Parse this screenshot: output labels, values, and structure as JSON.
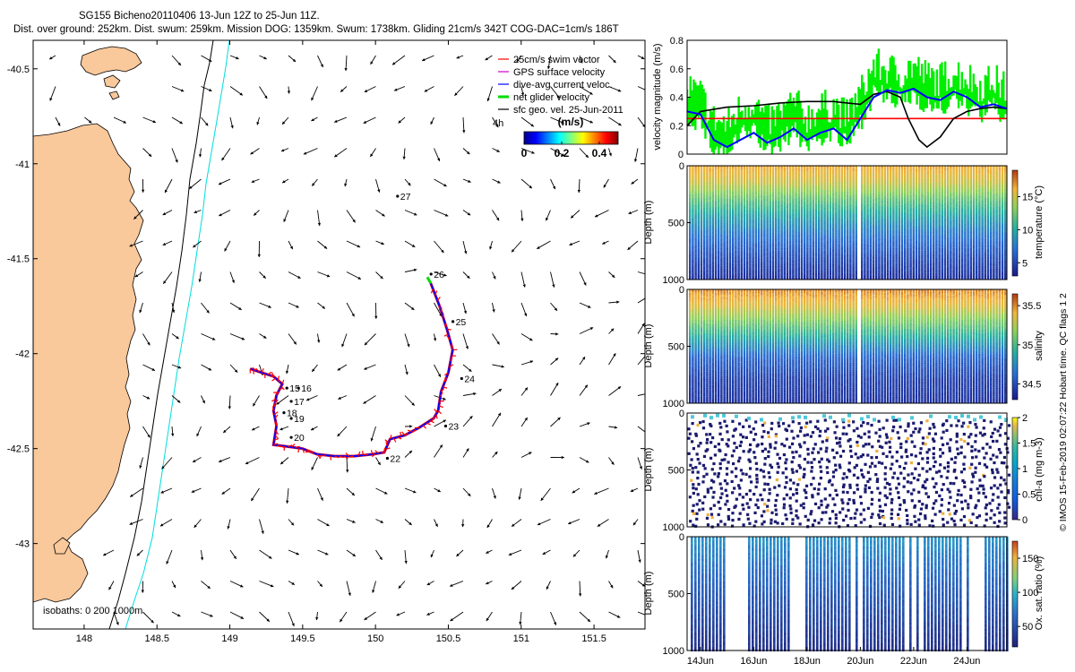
{
  "title": {
    "line1": "SG155 Bicheno20110406 13-Jun 12Z to 25-Jun 11Z.",
    "line2": "Dist. over ground: 252km. Dist. swum: 259km. Mission DOG: 1359km. Swum: 1738km. Gliding 21cm/s 342T COG-DAC=1cm/s 186T"
  },
  "credit": "© IMOS 15-Feb-2019 02:07:22 Hobart time. QC flags 1 2",
  "colors": {
    "land": "#f9c89b",
    "track_red": "#ff0000",
    "track_blue": "#0000ff",
    "track_green": "#00e000",
    "cyan_isobath": "#00dddd",
    "axis": "#000000"
  },
  "chart_data": [
    {
      "type": "map",
      "id": "track_map",
      "lon_ticks": [
        "148",
        "148.5",
        "149",
        "149.5",
        "150",
        "150.5",
        "151",
        "151.5"
      ],
      "lat_ticks": [
        "-40.5",
        "-41",
        "-41.5",
        "-42",
        "-42.5",
        "-43"
      ],
      "xlim": [
        147.65,
        151.85
      ],
      "ylim": [
        -43.45,
        -40.35
      ],
      "legend": {
        "placement": "top-right",
        "items": [
          {
            "label": "25cm/s swim vector",
            "color": "#ff0000"
          },
          {
            "label": "GPS surface velocity",
            "color": "#cc00cc"
          },
          {
            "label": "dive-avg current veloc.",
            "color": "#0000ff"
          },
          {
            "label": "net glider velocity",
            "color": "#00dd00"
          },
          {
            "label": "sfc geo. vel. 25-Jun-2011",
            "color": "#000000"
          }
        ]
      },
      "legend_note": "4h",
      "colorbar": {
        "title": "(m/s)",
        "ticks": [
          "0",
          "0.2",
          "0.4"
        ],
        "range": [
          0,
          0.5
        ]
      },
      "isobaths_label": "isobaths: 0   200  1000m",
      "day_labels": [
        {
          "text": "27",
          "lon": 150.17,
          "lat": -41.19
        },
        {
          "text": "26",
          "lon": 150.4,
          "lat": -41.6
        },
        {
          "text": "25",
          "lon": 150.55,
          "lat": -41.85
        },
        {
          "text": "24",
          "lon": 150.61,
          "lat": -42.15
        },
        {
          "text": "23",
          "lon": 150.5,
          "lat": -42.4
        },
        {
          "text": "22",
          "lon": 150.1,
          "lat": -42.57
        },
        {
          "text": "20",
          "lon": 149.44,
          "lat": -42.46
        },
        {
          "text": "19",
          "lon": 149.44,
          "lat": -42.36
        },
        {
          "text": "18",
          "lon": 149.39,
          "lat": -42.33
        },
        {
          "text": "17",
          "lon": 149.44,
          "lat": -42.27
        },
        {
          "text": "16",
          "lon": 149.49,
          "lat": -42.2
        },
        {
          "text": "15",
          "lon": 149.41,
          "lat": -42.2
        }
      ],
      "track": [
        [
          149.14,
          -42.08
        ],
        [
          149.22,
          -42.1
        ],
        [
          149.3,
          -42.12
        ],
        [
          149.36,
          -42.16
        ],
        [
          149.32,
          -42.22
        ],
        [
          149.3,
          -42.3
        ],
        [
          149.32,
          -42.38
        ],
        [
          149.3,
          -42.48
        ],
        [
          149.4,
          -42.49
        ],
        [
          149.5,
          -42.5
        ],
        [
          149.6,
          -42.53
        ],
        [
          149.72,
          -42.54
        ],
        [
          149.85,
          -42.54
        ],
        [
          149.98,
          -42.53
        ],
        [
          150.06,
          -42.52
        ],
        [
          150.1,
          -42.45
        ],
        [
          150.2,
          -42.43
        ],
        [
          150.3,
          -42.39
        ],
        [
          150.4,
          -42.34
        ],
        [
          150.43,
          -42.3
        ],
        [
          150.45,
          -42.2
        ],
        [
          150.5,
          -42.1
        ],
        [
          150.53,
          -41.98
        ],
        [
          150.49,
          -41.87
        ],
        [
          150.44,
          -41.75
        ],
        [
          150.38,
          -41.63
        ]
      ]
    },
    {
      "type": "line",
      "id": "velocity",
      "ylabel": "velocity magnitude (m/s)",
      "yticks": [
        "0",
        "0.2",
        "0.4",
        "0.6",
        "0.8"
      ],
      "ylim": [
        0,
        0.8
      ],
      "xlim": [
        13.5,
        25.5
      ],
      "series": [
        {
          "color": "#ff0000",
          "x": [
            13.5,
            25.5
          ],
          "y": [
            0.25,
            0.25
          ]
        },
        {
          "color": "#000000",
          "x": [
            13.5,
            14,
            15,
            16,
            17,
            18,
            19,
            19.5,
            20,
            20.5,
            21,
            21.5,
            21.8,
            22.2,
            22.5,
            23,
            23.5,
            24,
            24.5,
            25,
            25.5
          ],
          "y": [
            0.2,
            0.3,
            0.33,
            0.34,
            0.36,
            0.37,
            0.37,
            0.36,
            0.35,
            0.42,
            0.44,
            0.4,
            0.25,
            0.1,
            0.05,
            0.12,
            0.25,
            0.3,
            0.32,
            0.33,
            0.32
          ]
        },
        {
          "color": "#0000ff",
          "x": [
            13.5,
            14,
            14.5,
            15,
            15.5,
            16,
            16.5,
            17,
            17.5,
            18,
            18.5,
            19,
            19.5,
            20,
            20.5,
            21,
            21.5,
            22,
            22.5,
            23,
            23.5,
            24,
            24.5,
            25,
            25.5
          ],
          "y": [
            0.3,
            0.28,
            0.1,
            0.05,
            0.1,
            0.15,
            0.08,
            0.12,
            0.18,
            0.1,
            0.15,
            0.18,
            0.1,
            0.25,
            0.4,
            0.45,
            0.43,
            0.46,
            0.4,
            0.38,
            0.44,
            0.4,
            0.33,
            0.35,
            0.32
          ]
        },
        {
          "color": "#00ee00",
          "x": [
            13.5,
            14,
            14.5,
            15,
            15.5,
            16,
            16.5,
            17,
            17.5,
            18,
            18.5,
            19,
            19.5,
            20,
            20.5,
            21,
            21.5,
            22,
            22.5,
            23,
            23.5,
            24,
            24.5,
            25,
            25.5
          ],
          "y": [
            0.34,
            0.3,
            0.12,
            0.08,
            0.2,
            0.25,
            0.1,
            0.16,
            0.24,
            0.14,
            0.2,
            0.22,
            0.14,
            0.3,
            0.5,
            0.48,
            0.44,
            0.5,
            0.42,
            0.4,
            0.46,
            0.42,
            0.36,
            0.4,
            0.33
          ]
        }
      ]
    },
    {
      "type": "scatter",
      "id": "temperature",
      "ylabel": "Depth (m)",
      "yticks": [
        "0",
        "500",
        "1000"
      ],
      "ylim": [
        1000,
        0
      ],
      "colorbar": {
        "label": "temperature (°C)",
        "ticks": [
          "5",
          "10",
          "15"
        ],
        "range": [
          3,
          19
        ]
      },
      "profile": [
        [
          0,
          16.5
        ],
        [
          150,
          15
        ],
        [
          300,
          12
        ],
        [
          450,
          9.5
        ],
        [
          600,
          7.5
        ],
        [
          800,
          5.5
        ],
        [
          1000,
          4
        ]
      ]
    },
    {
      "type": "scatter",
      "id": "salinity",
      "ylabel": "Depth (m)",
      "yticks": [
        "0",
        "500",
        "1000"
      ],
      "ylim": [
        1000,
        0
      ],
      "colorbar": {
        "label": "salinity",
        "ticks": [
          "34.5",
          "35",
          "35.5"
        ],
        "range": [
          34.3,
          35.65
        ]
      },
      "profile": [
        [
          0,
          35.5
        ],
        [
          150,
          35.35
        ],
        [
          300,
          35.1
        ],
        [
          450,
          34.85
        ],
        [
          600,
          34.6
        ],
        [
          800,
          34.45
        ],
        [
          1000,
          34.4
        ]
      ]
    },
    {
      "type": "scatter",
      "id": "chla",
      "ylabel": "Depth (m)",
      "yticks": [
        "0",
        "500",
        "1000"
      ],
      "ylim": [
        1000,
        0
      ],
      "colorbar": {
        "label": "chl-a (mg m-3)",
        "ticks": [
          "0",
          "0.5",
          "1",
          "1.5",
          "2"
        ],
        "range": [
          0,
          2
        ]
      }
    },
    {
      "type": "scatter",
      "id": "oxygen",
      "ylabel": "Depth (m)",
      "yticks": [
        "0",
        "500",
        "1000"
      ],
      "ylim": [
        1000,
        0
      ],
      "xticks": [
        "14Jun",
        "16Jun",
        "18Jun",
        "20Jun",
        "22Jun",
        "24Jun"
      ],
      "xtick_values": [
        14,
        16,
        18,
        20,
        22,
        24
      ],
      "xlim": [
        13.5,
        25.5
      ],
      "colorbar": {
        "label": "Ox. sat. ratio (%)",
        "ticks": [
          "50",
          "100",
          "150"
        ],
        "range": [
          20,
          175
        ]
      }
    }
  ]
}
